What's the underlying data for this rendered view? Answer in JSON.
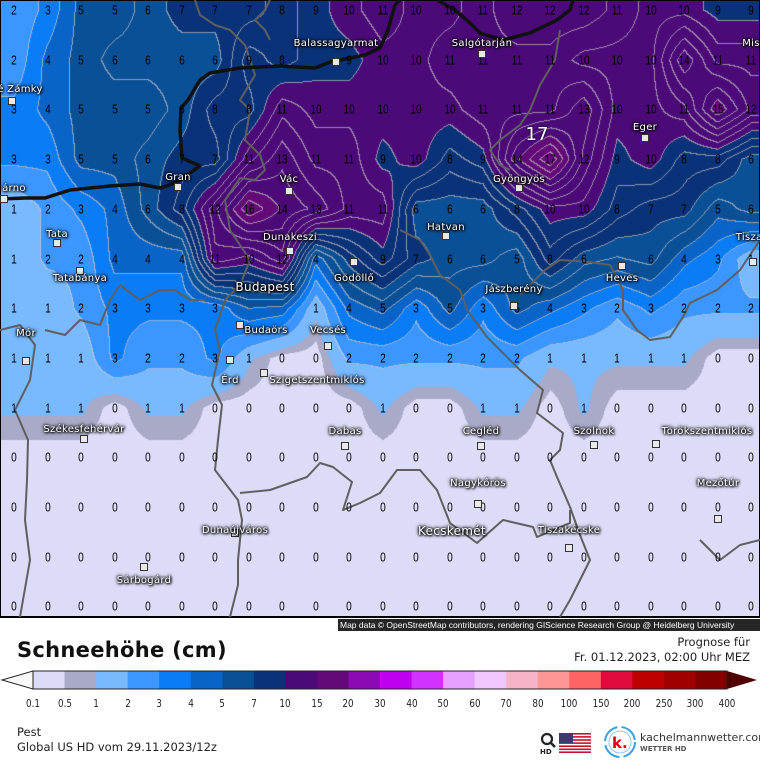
{
  "map": {
    "region": "Pest",
    "snow_depth_cm_grid": [
      [
        2,
        3,
        5,
        5,
        6,
        7,
        7,
        7,
        8,
        9,
        10,
        11,
        10,
        10,
        11,
        12,
        12,
        12,
        11,
        10,
        10,
        9,
        9
      ],
      [
        2,
        4,
        5,
        6,
        6,
        6,
        6,
        9,
        8,
        null,
        9,
        10,
        10,
        11,
        11,
        11,
        11,
        10,
        10,
        10,
        14,
        11,
        11
      ],
      [
        3,
        4,
        5,
        5,
        5,
        6,
        8,
        8,
        11,
        10,
        10,
        10,
        10,
        10,
        11,
        11,
        11,
        13,
        10,
        10,
        11,
        15,
        12
      ],
      [
        3,
        3,
        5,
        5,
        6,
        7,
        7,
        11,
        13,
        11,
        11,
        9,
        10,
        8,
        9,
        14,
        17,
        12,
        9,
        10,
        8,
        8,
        6
      ],
      [
        1,
        2,
        3,
        4,
        6,
        8,
        12,
        16,
        14,
        13,
        11,
        11,
        6,
        6,
        6,
        8,
        10,
        10,
        8,
        7,
        7,
        5,
        6
      ],
      [
        1,
        2,
        2,
        4,
        4,
        4,
        11,
        10,
        12,
        4,
        null,
        9,
        7,
        6,
        6,
        5,
        8,
        6,
        null,
        6,
        4,
        3,
        1
      ],
      [
        1,
        1,
        2,
        3,
        3,
        3,
        3,
        null,
        null,
        1,
        4,
        5,
        3,
        5,
        3,
        5,
        4,
        3,
        2,
        3,
        2,
        2,
        2
      ],
      [
        1,
        1,
        1,
        3,
        2,
        2,
        3,
        1,
        0,
        0,
        2,
        2,
        2,
        2,
        2,
        2,
        1,
        1,
        1,
        1,
        1,
        0,
        0
      ],
      [
        1,
        1,
        1,
        0,
        1,
        1,
        0,
        0,
        0,
        0,
        0,
        1,
        0,
        0,
        1,
        1,
        0,
        1,
        0,
        0,
        0,
        0,
        0
      ],
      [
        0,
        0,
        0,
        0,
        0,
        0,
        0,
        0,
        0,
        0,
        0,
        0,
        0,
        0,
        0,
        0,
        0,
        0,
        0,
        0,
        0,
        0,
        0
      ],
      [
        0,
        0,
        0,
        0,
        0,
        0,
        0,
        0,
        0,
        0,
        0,
        0,
        0,
        0,
        0,
        0,
        0,
        0,
        0,
        0,
        0,
        0,
        0
      ],
      [
        0,
        0,
        0,
        0,
        0,
        0,
        0,
        0,
        0,
        0,
        0,
        0,
        0,
        0,
        0,
        0,
        0,
        0,
        0,
        0,
        0,
        0,
        0
      ],
      [
        0,
        0,
        0,
        0,
        0,
        0,
        0,
        0,
        0,
        0,
        0,
        0,
        0,
        0,
        0,
        0,
        0,
        0,
        0,
        0,
        0,
        0,
        0
      ]
    ],
    "max_label": "17",
    "cities": [
      "Balassagyarmat",
      "Salgótarján",
      "Mis",
      "é Zámky",
      "Eger",
      "Gyöngyös",
      "Gran",
      "Vác",
      "árno",
      "Tata",
      "Tatabánya",
      "Dunakeszi",
      "Gödöllő",
      "Hatvan",
      "Heves",
      "Tiszaf",
      "Jászberény",
      "Budapest",
      "Budaörs",
      "Érd",
      "Vecsés",
      "Szigetszentmiklós",
      "Mór",
      "Székesfehérvár",
      "Dabas",
      "Cegléd",
      "Szolnok",
      "Törökszentmiklós",
      "Nagykőrös",
      "Mezőtúr",
      "Dunaújváros",
      "Tiszakécske",
      "Kecskemét",
      "Sárbogárd"
    ],
    "attribution": "Map data © OpenStreetMap contributors, rendering GIScience Research Group @ Heidelberg University",
    "border_color": "#111111",
    "county_line_color": "#5f5f5f"
  },
  "legend": {
    "title": "Schneehöhe (cm)",
    "levels": [
      "0.1",
      "0.5",
      "1",
      "2",
      "3",
      "4",
      "5",
      "7",
      "10",
      "15",
      "20",
      "30",
      "40",
      "50",
      "60",
      "70",
      "80",
      "100",
      "150",
      "200",
      "250",
      "300",
      "400"
    ],
    "colors": [
      "#dcdcf8",
      "#a9a9c8",
      "#78b9ff",
      "#3c96ff",
      "#0a7cf5",
      "#0a64c8",
      "#0a5096",
      "#0a3278",
      "#4b0a78",
      "#640a78",
      "#8c0ab4",
      "#be00f0",
      "#d232ff",
      "#e6a0ff",
      "#f0c8ff",
      "#f5b4c8",
      "#ff9696",
      "#ff6464",
      "#e10a3c",
      "#be0000",
      "#a00000",
      "#820000"
    ],
    "below_color": "#f8f8f8",
    "above_color": "#500000"
  },
  "header": {
    "prognose_label": "Prognose für",
    "valid_time": "Fr. 01.12.2023, 02:00 Uhr MEZ"
  },
  "footer": {
    "region": "Pest",
    "model_run": "Global US HD vom  29.11.2023/12z",
    "brand": "kachelmannwetter.com",
    "brand_sub": "WETTER HD",
    "hd_icon": "magnifier-hd-icon",
    "model_flag": "us-flag-icon",
    "brand_logo_letter": "k."
  }
}
